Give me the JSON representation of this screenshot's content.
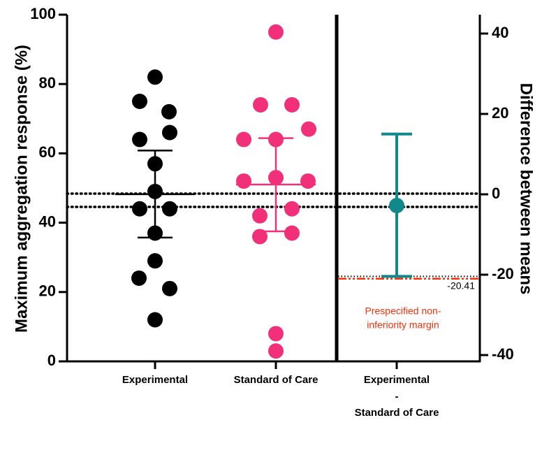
{
  "chart_data": {
    "type": "scatter",
    "left_axis": {
      "label": "Maximum aggregation response (%)",
      "ylim": [
        0,
        100
      ],
      "ticks": [
        "0",
        "20",
        "40",
        "60",
        "80",
        "100"
      ]
    },
    "right_axis": {
      "label": "Difference between means",
      "ticks": [
        "40",
        "20",
        "0",
        "-20",
        "-40"
      ]
    },
    "categories": [
      "Experimental",
      "Standard of Care",
      "Experimental",
      "-",
      "Standard of Care"
    ],
    "series": [
      {
        "category": "Experimental",
        "color": "#000000",
        "points": [
          82,
          75,
          72,
          66,
          64,
          57,
          49,
          44,
          44,
          37,
          29,
          24,
          21,
          12
        ],
        "median": 48.2,
        "q1": 35.7,
        "q3": 60.8
      },
      {
        "category": "Standard of Care",
        "color": "#f2307a",
        "points": [
          95,
          74,
          74,
          67,
          64,
          64,
          53,
          52,
          52,
          44,
          42,
          37,
          36,
          8,
          3
        ],
        "median": 51,
        "q1": 37.5,
        "q3": 64.4
      }
    ],
    "difference": {
      "color": "#11888c",
      "estimate": -2.8,
      "ci_lower": -20.41,
      "ci_upper": 15,
      "lower_bound_label": "-20.41"
    },
    "reference_lines": {
      "zero_difference_style": "dotted",
      "non_inferiority_margin": -21,
      "non_inferiority_color": "#f2310b",
      "non_inferiority_label_line1": "Prespecified non-",
      "non_inferiority_label_line2": "inferiority margin"
    }
  }
}
